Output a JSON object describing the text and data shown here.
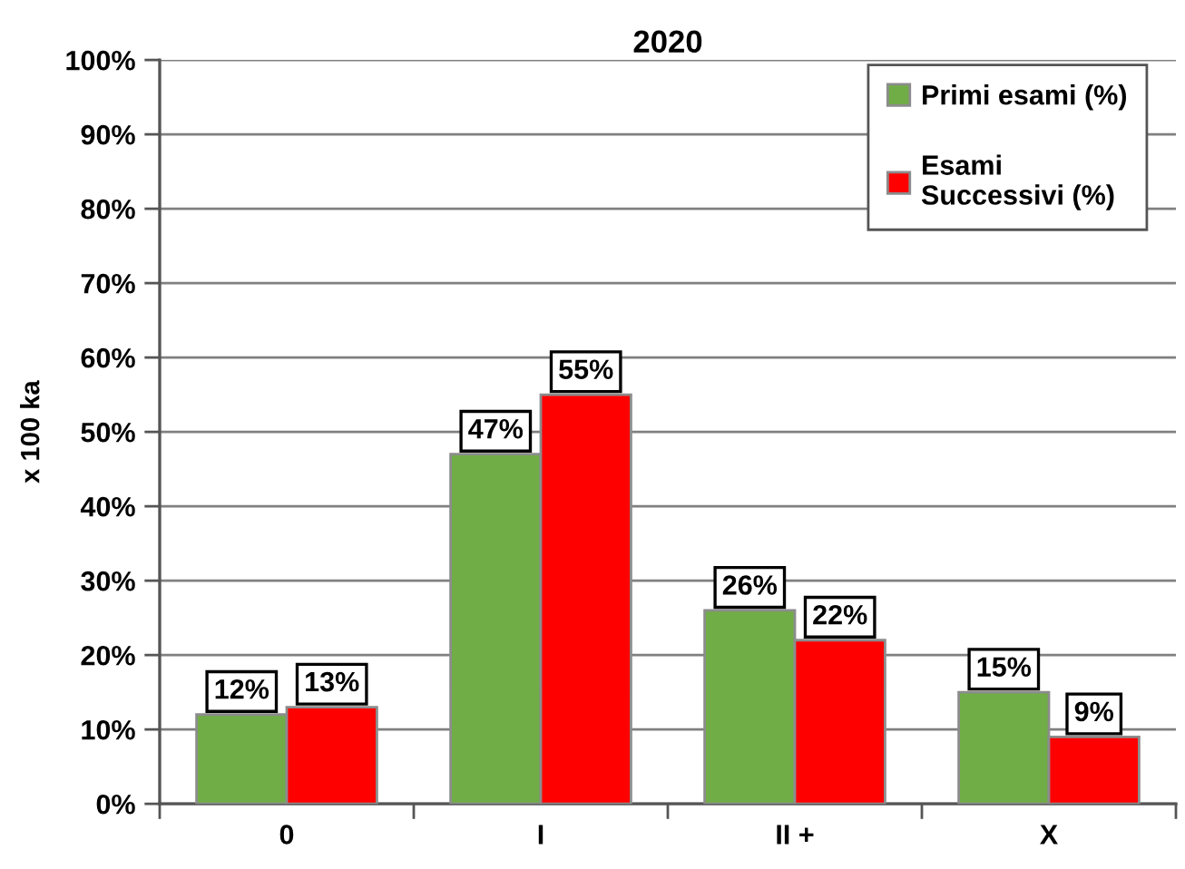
{
  "chart_data": {
    "type": "bar",
    "title": "2020",
    "ylabel": "x 100 ka",
    "categories": [
      "0",
      "I",
      "II +",
      "X"
    ],
    "series": [
      {
        "name": "Primi esami (%)",
        "color": "#70ad47",
        "values": [
          12,
          47,
          26,
          15
        ],
        "value_labels": [
          "12%",
          "47%",
          "26%",
          "15%"
        ]
      },
      {
        "name": "Esami Successivi (%)",
        "color": "#ff0000",
        "values": [
          13,
          55,
          22,
          9
        ],
        "value_labels": [
          "13%",
          "55%",
          "22%",
          "9%"
        ]
      }
    ],
    "ylim": [
      0,
      100
    ],
    "yticks": [
      {
        "value": 0,
        "label": "0%"
      },
      {
        "value": 10,
        "label": "10%"
      },
      {
        "value": 20,
        "label": "20%"
      },
      {
        "value": 30,
        "label": "30%"
      },
      {
        "value": 40,
        "label": "40%"
      },
      {
        "value": 50,
        "label": "50%"
      },
      {
        "value": 60,
        "label": "60%"
      },
      {
        "value": 70,
        "label": "70%"
      },
      {
        "value": 80,
        "label": "80%"
      },
      {
        "value": 90,
        "label": "90%"
      },
      {
        "value": 100,
        "label": "100%"
      }
    ],
    "grid": "y",
    "legend": "top right"
  }
}
